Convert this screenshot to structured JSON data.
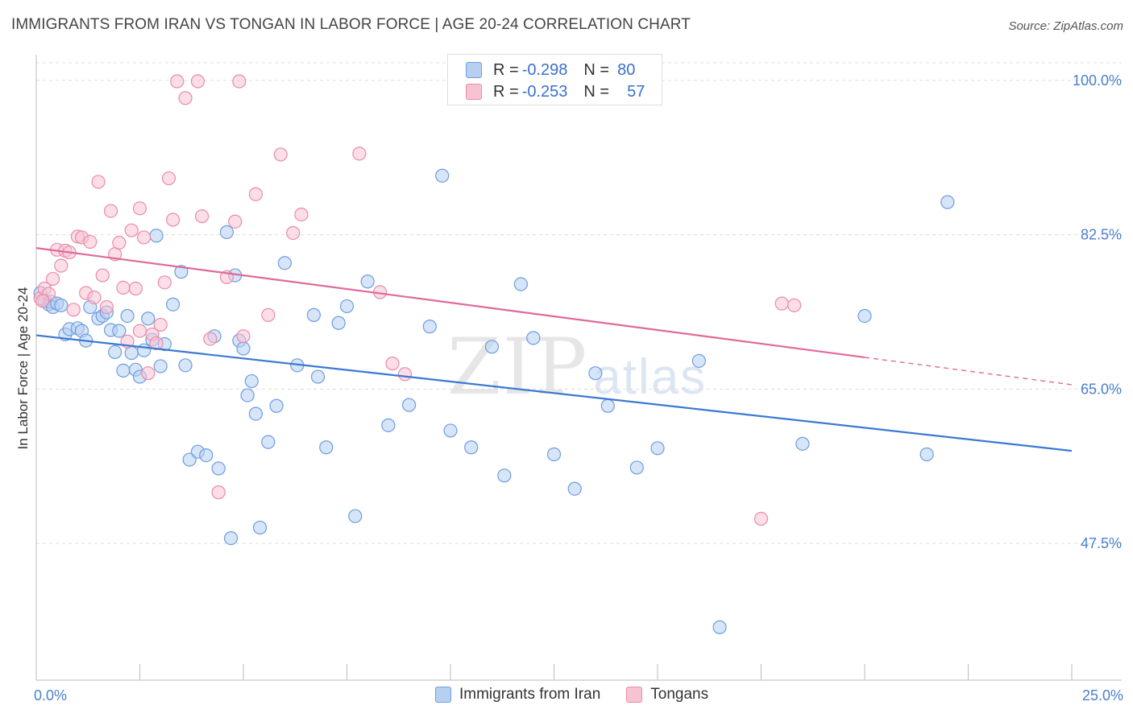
{
  "title": "IMMIGRANTS FROM IRAN VS TONGAN IN LABOR FORCE | AGE 20-24 CORRELATION CHART",
  "source": "Source: ZipAtlas.com",
  "watermark": {
    "zip": "ZIP",
    "atlas": "atlas"
  },
  "legend": {
    "rows": [
      {
        "r_label": "R =",
        "r_value": "-0.298",
        "n_label": "N =",
        "n_value": "80"
      },
      {
        "r_label": "R =",
        "r_value": "-0.253",
        "n_label": "N =",
        "n_value": "57"
      }
    ]
  },
  "colors": {
    "blue_fill": "#b7d0f2",
    "blue_stroke": "#6d9de0",
    "blue_line": "#3b78d4",
    "pink_fill": "#f7c3d3",
    "pink_stroke": "#ea8ba8",
    "pink_line": "#e0699a",
    "grid": "#dddddd",
    "axis_label": "#4a7fcf"
  },
  "chart_data": {
    "type": "scatter",
    "title": "IMMIGRANTS FROM IRAN VS TONGAN IN LABOR FORCE | AGE 20-24 CORRELATION CHART",
    "xlabel": "",
    "ylabel": "In Labor Force | Age 20-24",
    "xlim": [
      0,
      25
    ],
    "ylim": [
      32,
      102
    ],
    "x_tick_labels": [
      "0.0%",
      "25.0%"
    ],
    "y_ticks": [
      47.5,
      65.0,
      82.5,
      100.0
    ],
    "y_tick_labels": [
      "47.5%",
      "65.0%",
      "82.5%",
      "100.0%"
    ],
    "grid": true,
    "legend_position": "top-center",
    "series": [
      {
        "name": "Immigrants from Iran",
        "color": "#6d9de0",
        "r": -0.298,
        "n": 80,
        "trend": {
          "x": [
            0,
            25
          ],
          "y": [
            71.1,
            58.0
          ],
          "dashed_from": null
        },
        "points": [
          [
            0.1,
            75.9
          ],
          [
            0.2,
            75.0
          ],
          [
            0.3,
            74.6
          ],
          [
            0.35,
            74.9
          ],
          [
            0.4,
            74.3
          ],
          [
            0.5,
            74.7
          ],
          [
            0.6,
            74.5
          ],
          [
            0.7,
            71.2
          ],
          [
            0.8,
            71.8
          ],
          [
            1.0,
            71.9
          ],
          [
            1.1,
            71.6
          ],
          [
            1.2,
            70.5
          ],
          [
            1.3,
            74.3
          ],
          [
            1.5,
            73.0
          ],
          [
            1.6,
            73.3
          ],
          [
            1.7,
            73.7
          ],
          [
            1.8,
            71.7
          ],
          [
            1.9,
            69.2
          ],
          [
            2.0,
            71.6
          ],
          [
            2.1,
            67.1
          ],
          [
            2.2,
            73.3
          ],
          [
            2.3,
            69.1
          ],
          [
            2.4,
            67.2
          ],
          [
            2.5,
            66.4
          ],
          [
            2.6,
            69.4
          ],
          [
            2.7,
            73.0
          ],
          [
            2.8,
            70.6
          ],
          [
            2.9,
            82.4
          ],
          [
            3.0,
            67.6
          ],
          [
            3.1,
            70.1
          ],
          [
            3.3,
            74.6
          ],
          [
            3.5,
            78.3
          ],
          [
            3.6,
            67.7
          ],
          [
            3.7,
            57.0
          ],
          [
            3.9,
            57.9
          ],
          [
            4.1,
            57.5
          ],
          [
            4.3,
            71.0
          ],
          [
            4.4,
            56.0
          ],
          [
            4.6,
            82.8
          ],
          [
            4.7,
            48.1
          ],
          [
            4.8,
            77.9
          ],
          [
            4.9,
            70.5
          ],
          [
            5.0,
            69.6
          ],
          [
            5.1,
            64.3
          ],
          [
            5.2,
            65.9
          ],
          [
            5.3,
            62.2
          ],
          [
            5.4,
            49.3
          ],
          [
            5.6,
            59.0
          ],
          [
            5.8,
            63.1
          ],
          [
            6.0,
            79.3
          ],
          [
            6.3,
            67.7
          ],
          [
            6.7,
            73.4
          ],
          [
            6.8,
            66.4
          ],
          [
            7.0,
            58.4
          ],
          [
            7.3,
            72.5
          ],
          [
            7.5,
            74.4
          ],
          [
            7.7,
            50.6
          ],
          [
            8.0,
            77.2
          ],
          [
            8.5,
            60.9
          ],
          [
            9.0,
            63.2
          ],
          [
            9.5,
            72.1
          ],
          [
            10.0,
            60.3
          ],
          [
            10.5,
            58.4
          ],
          [
            11.0,
            69.8
          ],
          [
            11.3,
            55.2
          ],
          [
            11.7,
            76.9
          ],
          [
            12.0,
            70.8
          ],
          [
            12.5,
            57.6
          ],
          [
            13.0,
            53.7
          ],
          [
            13.5,
            66.8
          ],
          [
            13.8,
            63.1
          ],
          [
            14.5,
            56.1
          ],
          [
            15.0,
            58.3
          ],
          [
            16.0,
            68.2
          ],
          [
            16.5,
            38.0
          ],
          [
            18.5,
            58.8
          ],
          [
            20.0,
            73.3
          ],
          [
            21.5,
            57.6
          ],
          [
            22.0,
            86.2
          ],
          [
            9.8,
            89.2
          ]
        ]
      },
      {
        "name": "Tongans",
        "color": "#ea8ba8",
        "r": -0.253,
        "n": 57,
        "trend": {
          "x": [
            0,
            25
          ],
          "y": [
            81.0,
            65.5
          ],
          "dashed_from": 20.0
        },
        "points": [
          [
            0.1,
            75.3
          ],
          [
            0.2,
            76.4
          ],
          [
            0.3,
            75.8
          ],
          [
            0.4,
            77.5
          ],
          [
            0.5,
            80.8
          ],
          [
            0.6,
            79.0
          ],
          [
            0.7,
            80.7
          ],
          [
            0.8,
            80.5
          ],
          [
            0.9,
            74.0
          ],
          [
            1.0,
            82.3
          ],
          [
            1.1,
            82.2
          ],
          [
            1.2,
            75.9
          ],
          [
            1.3,
            81.7
          ],
          [
            1.4,
            75.4
          ],
          [
            1.5,
            88.5
          ],
          [
            1.6,
            77.9
          ],
          [
            1.7,
            74.3
          ],
          [
            1.8,
            85.2
          ],
          [
            1.9,
            80.3
          ],
          [
            2.0,
            81.6
          ],
          [
            2.1,
            76.5
          ],
          [
            2.2,
            70.4
          ],
          [
            2.3,
            83.0
          ],
          [
            2.4,
            76.4
          ],
          [
            2.5,
            85.5
          ],
          [
            2.6,
            82.2
          ],
          [
            2.7,
            66.8
          ],
          [
            2.8,
            71.2
          ],
          [
            2.9,
            70.2
          ],
          [
            3.0,
            72.3
          ],
          [
            3.1,
            77.1
          ],
          [
            3.2,
            88.9
          ],
          [
            3.3,
            84.2
          ],
          [
            3.4,
            99.9
          ],
          [
            3.6,
            98.0
          ],
          [
            3.9,
            99.9
          ],
          [
            4.0,
            84.6
          ],
          [
            4.2,
            70.7
          ],
          [
            4.4,
            53.3
          ],
          [
            4.6,
            77.7
          ],
          [
            4.8,
            84.0
          ],
          [
            5.0,
            71.0
          ],
          [
            5.3,
            87.1
          ],
          [
            5.6,
            73.4
          ],
          [
            5.9,
            91.6
          ],
          [
            6.2,
            82.7
          ],
          [
            6.4,
            84.8
          ],
          [
            7.8,
            91.7
          ],
          [
            8.3,
            76.0
          ],
          [
            8.6,
            67.9
          ],
          [
            8.9,
            66.7
          ],
          [
            4.9,
            99.9
          ],
          [
            17.5,
            50.3
          ],
          [
            18.0,
            74.7
          ],
          [
            18.3,
            74.5
          ],
          [
            0.15,
            75.0
          ],
          [
            2.5,
            71.6
          ]
        ]
      }
    ]
  },
  "bottom_legend": [
    "Immigrants from Iran",
    "Tongans"
  ]
}
